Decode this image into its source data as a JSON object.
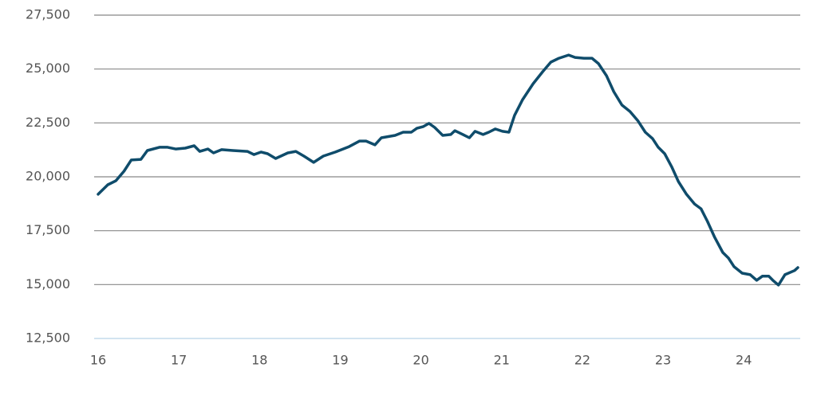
{
  "chart_data": {
    "type": "line",
    "color": "#0f4c6b",
    "grid": true,
    "x": [
      16.0,
      16.12,
      16.22,
      16.32,
      16.41,
      16.53,
      16.61,
      16.76,
      16.86,
      16.96,
      17.08,
      17.19,
      17.26,
      17.36,
      17.43,
      17.53,
      17.67,
      17.85,
      17.93,
      18.02,
      18.1,
      18.2,
      18.35,
      18.45,
      18.55,
      18.67,
      18.79,
      18.94,
      19.11,
      19.24,
      19.32,
      19.43,
      19.51,
      19.68,
      19.78,
      19.88,
      19.95,
      20.03,
      20.1,
      20.17,
      20.27,
      20.37,
      20.42,
      20.52,
      20.6,
      20.67,
      20.77,
      20.84,
      20.92,
      21.01,
      21.09,
      21.16,
      21.26,
      21.39,
      21.51,
      21.61,
      21.71,
      21.83,
      21.91,
      22.02,
      22.12,
      22.2,
      22.3,
      22.39,
      22.49,
      22.59,
      22.69,
      22.78,
      22.87,
      22.94,
      23.02,
      23.11,
      23.19,
      23.29,
      23.39,
      23.47,
      23.55,
      23.64,
      23.74,
      23.81,
      23.88,
      23.98,
      24.08,
      24.16,
      24.23,
      24.31,
      24.36,
      24.43,
      24.51,
      24.63,
      24.67
    ],
    "values": [
      19190,
      19630,
      19820,
      20260,
      20780,
      20810,
      21220,
      21370,
      21370,
      21290,
      21330,
      21440,
      21180,
      21290,
      21110,
      21260,
      21220,
      21180,
      21030,
      21150,
      21070,
      20850,
      21110,
      21180,
      20960,
      20670,
      20960,
      21150,
      21400,
      21660,
      21660,
      21480,
      21810,
      21920,
      22070,
      22070,
      22250,
      22330,
      22480,
      22290,
      21920,
      21960,
      22140,
      21960,
      21810,
      22110,
      21960,
      22070,
      22220,
      22110,
      22070,
      22850,
      23580,
      24320,
      24880,
      25320,
      25500,
      25650,
      25540,
      25500,
      25500,
      25250,
      24690,
      23950,
      23330,
      23030,
      22590,
      22070,
      21770,
      21370,
      21070,
      20440,
      19780,
      19190,
      18740,
      18520,
      17930,
      17190,
      16490,
      16230,
      15830,
      15530,
      15460,
      15200,
      15390,
      15390,
      15200,
      14980,
      15460,
      15650,
      15790
    ],
    "xlim": [
      16,
      24.7
    ],
    "xticks": [
      16,
      17,
      18,
      19,
      20,
      21,
      22,
      23,
      24
    ],
    "ylim": [
      12500,
      27500
    ],
    "yticks": [
      {
        "value": 12500,
        "label": "12,500"
      },
      {
        "value": 15000,
        "label": "15,000"
      },
      {
        "value": 17500,
        "label": "17,500"
      },
      {
        "value": 20000,
        "label": "20,000"
      },
      {
        "value": 22500,
        "label": "22,500"
      },
      {
        "value": 25000,
        "label": "25,000"
      },
      {
        "value": 27500,
        "label": "27,500"
      }
    ]
  }
}
